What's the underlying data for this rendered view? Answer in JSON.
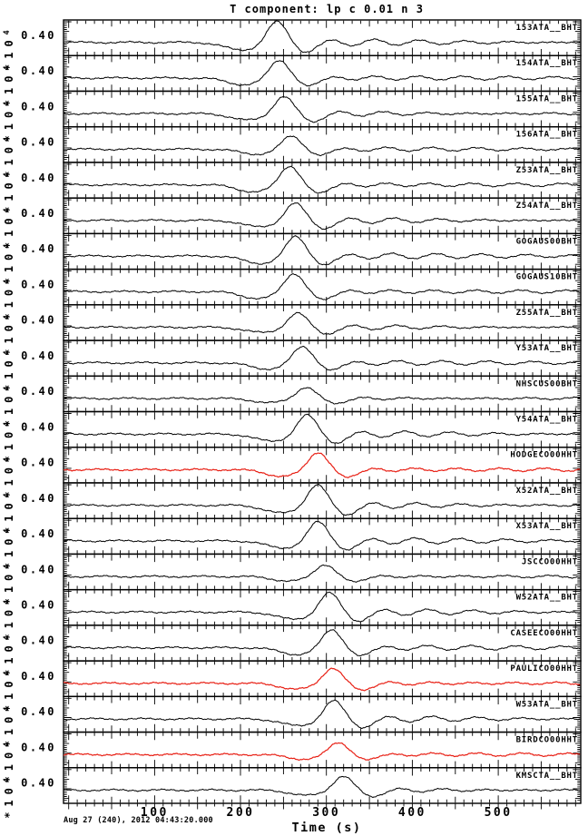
{
  "chart_data": {
    "type": "line",
    "title": "T component: lp c 0.01 n 3",
    "xlabel": "Time (s)",
    "start_time": "Aug 27 (240), 2012 04:43:20.000",
    "x_axis": {
      "range_s": [
        -6,
        596
      ],
      "minor_step_s": 10,
      "medium_step_s": 50,
      "major_ticks": [
        100,
        200,
        300,
        400,
        500
      ]
    },
    "y_axis": {
      "tick_label": "0.40",
      "scale_mantissa": "*10",
      "scale_exponent": "4",
      "scale_label": "*10^4"
    },
    "colors": {
      "black": "#000000",
      "red": "#e82015",
      "background": "#ffffff"
    },
    "traces": [
      {
        "label": "153ATA__BHT",
        "color": "black",
        "peak_time_s": 242,
        "rel_amplitude": 0.6
      },
      {
        "label": "154ATA__BHT",
        "color": "black",
        "peak_time_s": 245,
        "rel_amplitude": 0.52
      },
      {
        "label": "155ATA__BHT",
        "color": "black",
        "peak_time_s": 250,
        "rel_amplitude": 0.5
      },
      {
        "label": "156ATA__BHT",
        "color": "black",
        "peak_time_s": 259,
        "rel_amplitude": 0.38
      },
      {
        "label": "Z53ATA__BHT",
        "color": "black",
        "peak_time_s": 257,
        "rel_amplitude": 0.55
      },
      {
        "label": "Z54ATA__BHT",
        "color": "black",
        "peak_time_s": 263,
        "rel_amplitude": 0.5
      },
      {
        "label": "GOGAUS00BHT",
        "color": "black",
        "peak_time_s": 264,
        "rel_amplitude": 0.57
      },
      {
        "label": "GOGAUS10BHT",
        "color": "black",
        "peak_time_s": 262,
        "rel_amplitude": 0.53
      },
      {
        "label": "Z55ATA__BHT",
        "color": "black",
        "peak_time_s": 266,
        "rel_amplitude": 0.41
      },
      {
        "label": "Y53ATA__BHT",
        "color": "black",
        "peak_time_s": 272,
        "rel_amplitude": 0.47
      },
      {
        "label": "NHSCUS00BHT",
        "color": "black",
        "peak_time_s": 276,
        "rel_amplitude": 0.33
      },
      {
        "label": "Y54ATA__BHT",
        "color": "black",
        "peak_time_s": 277,
        "rel_amplitude": 0.55
      },
      {
        "label": "HODGECO00HHT",
        "color": "red",
        "peak_time_s": 290,
        "rel_amplitude": 0.51
      },
      {
        "label": "X52ATA__BHT",
        "color": "black",
        "peak_time_s": 289,
        "rel_amplitude": 0.6
      },
      {
        "label": "X53ATA__BHT",
        "color": "black",
        "peak_time_s": 290,
        "rel_amplitude": 0.55
      },
      {
        "label": "JSCCO00HHT",
        "color": "black",
        "peak_time_s": 298,
        "rel_amplitude": 0.35
      },
      {
        "label": "W52ATA__BHT",
        "color": "black",
        "peak_time_s": 303,
        "rel_amplitude": 0.56
      },
      {
        "label": "CASEECO00HHT",
        "color": "black",
        "peak_time_s": 306,
        "rel_amplitude": 0.52
      },
      {
        "label": "PAULICO00HHT",
        "color": "red",
        "peak_time_s": 307,
        "rel_amplitude": 0.45
      },
      {
        "label": "W53ATA__BHT",
        "color": "black",
        "peak_time_s": 308,
        "rel_amplitude": 0.53
      },
      {
        "label": "BIRDCO00HHT",
        "color": "red",
        "peak_time_s": 314,
        "rel_amplitude": 0.35
      },
      {
        "label": "KMSCTA__BHT",
        "color": "black",
        "peak_time_s": 319,
        "rel_amplitude": 0.41
      }
    ]
  }
}
